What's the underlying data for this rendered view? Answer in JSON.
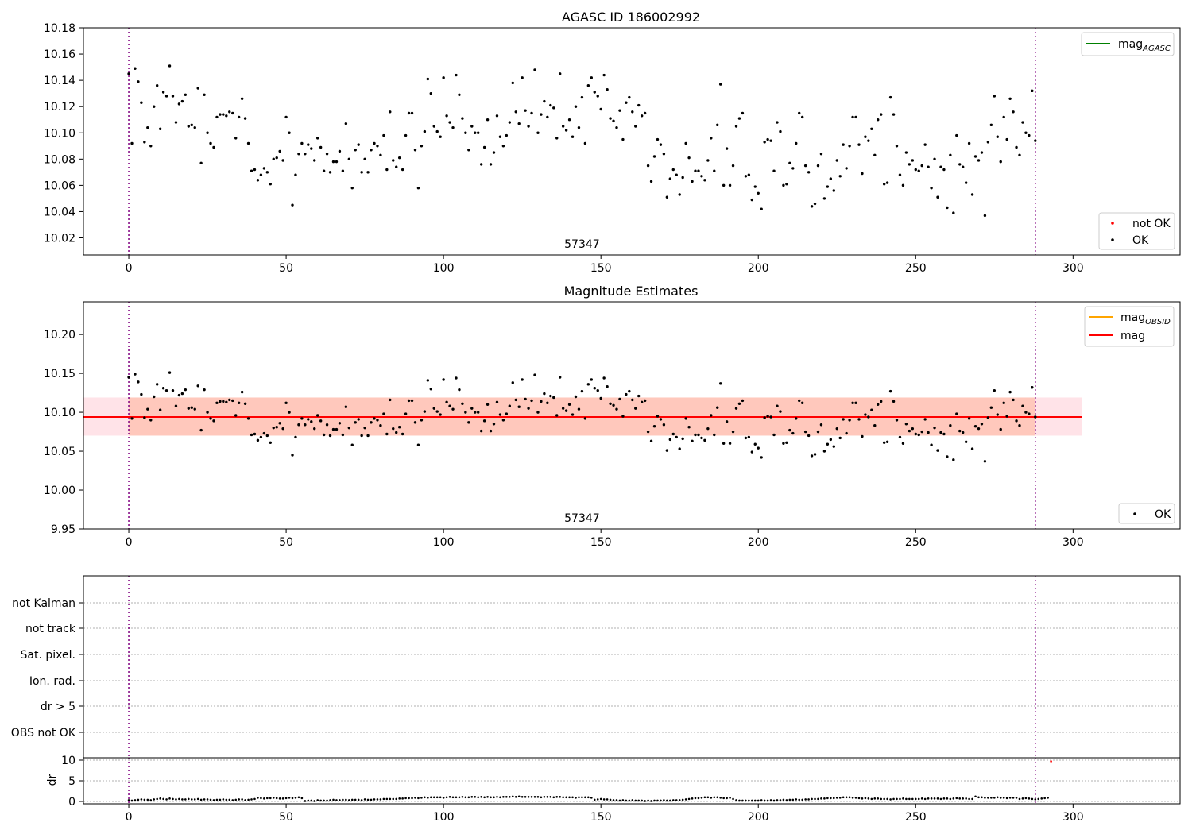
{
  "figure": {
    "background": "#ffffff"
  },
  "chart_data": [
    {
      "type": "scatter",
      "title": "AGASC ID 186002992",
      "xlim": [
        -14.4,
        334.0
      ],
      "ylim": [
        10.007,
        10.18
      ],
      "xticks": [
        0,
        50,
        100,
        150,
        200,
        250,
        300
      ],
      "xtick_labels": [
        "0",
        "50",
        "100",
        "150",
        "200",
        "250",
        "300"
      ],
      "yticks": [
        10.02,
        10.04,
        10.06,
        10.08,
        10.1,
        10.12,
        10.14,
        10.16,
        10.18
      ],
      "ytick_labels": [
        "10.02",
        "10.04",
        "10.06",
        "10.08",
        "10.10",
        "10.12",
        "10.14",
        "10.16",
        "10.18"
      ],
      "obs_boundaries": [
        0,
        288
      ],
      "obs_label": {
        "text": "57347",
        "x": 144
      },
      "legend_upper": [
        {
          "label": "mag",
          "subscript": "AGASC",
          "color": "#008000",
          "kind": "line"
        }
      ],
      "legend_lower": [
        {
          "label": "not OK",
          "color": "#ff0000",
          "kind": "dot"
        },
        {
          "label": "OK",
          "color": "#000000",
          "kind": "dot"
        }
      ],
      "series": [
        {
          "name": "OK",
          "color": "#000000",
          "points_ref": "ok_points"
        }
      ]
    },
    {
      "type": "scatter",
      "title": "Magnitude Estimates",
      "xlim": [
        -14.4,
        334.0
      ],
      "ylim": [
        9.95,
        10.242
      ],
      "xticks": [
        0,
        50,
        100,
        150,
        200,
        250,
        300
      ],
      "xtick_labels": [
        "0",
        "50",
        "100",
        "150",
        "200",
        "250",
        "300"
      ],
      "yticks": [
        9.95,
        10.0,
        10.05,
        10.1,
        10.15,
        10.2
      ],
      "ytick_labels": [
        "9.95",
        "10.00",
        "10.05",
        "10.10",
        "10.15",
        "10.20"
      ],
      "obs_boundaries": [
        0,
        288
      ],
      "obs_label": {
        "text": "57347",
        "x": 144
      },
      "mag_line": {
        "y": 10.094,
        "x": [
          -14.4,
          302.8
        ],
        "color": "#ff0000"
      },
      "mag_band": {
        "y": [
          10.07,
          10.119
        ],
        "x": [
          -14.4,
          302.8
        ],
        "color": "#ffc0cb"
      },
      "obsid_band": {
        "y": [
          10.07,
          10.119
        ],
        "x": [
          0,
          288
        ],
        "color": "#ffa07a"
      },
      "legend_upper": [
        {
          "label": "mag",
          "subscript": "OBSID",
          "color": "#ffa500",
          "kind": "line"
        },
        {
          "label": "mag",
          "subscript": "",
          "color": "#ff0000",
          "kind": "line"
        }
      ],
      "legend_lower": [
        {
          "label": "OK",
          "color": "#000000",
          "kind": "dot"
        }
      ],
      "series": [
        {
          "name": "OK",
          "color": "#000000",
          "points_ref": "ok_points"
        }
      ]
    },
    {
      "type": "scatter",
      "title": "",
      "xlim": [
        -14.4,
        334.0
      ],
      "categories": [
        "not Kalman",
        "not track",
        "Sat. pixel.",
        "Ion. rad.",
        "dr > 5",
        "OBS not OK"
      ],
      "obs_boundaries": [
        0,
        288
      ],
      "dr_panel": {
        "ylabel": "dr",
        "ylim": [
          0,
          11
        ],
        "yticks": [
          0,
          5,
          10
        ],
        "ytick_labels": [
          "0",
          "5",
          "10"
        ],
        "xticks": [
          0,
          50,
          100,
          150,
          200,
          250,
          300
        ],
        "xtick_labels": [
          "0",
          "50",
          "100",
          "150",
          "200",
          "250",
          "300"
        ],
        "series": [
          {
            "name": "dr",
            "color": "#000000",
            "y_ref": "dr_values"
          }
        ]
      }
    }
  ],
  "ok_points": [
    [
      0,
      10.145
    ],
    [
      1,
      10.092
    ],
    [
      2,
      10.149
    ],
    [
      3,
      10.139
    ],
    [
      4,
      10.123
    ],
    [
      5,
      10.093
    ],
    [
      6,
      10.104
    ],
    [
      7,
      10.09
    ],
    [
      8,
      10.12
    ],
    [
      9,
      10.136
    ],
    [
      10,
      10.103
    ],
    [
      11,
      10.131
    ],
    [
      12,
      10.128
    ],
    [
      13,
      10.151
    ],
    [
      14,
      10.128
    ],
    [
      15,
      10.108
    ],
    [
      16,
      10.122
    ],
    [
      17,
      10.124
    ],
    [
      18,
      10.129
    ],
    [
      19,
      10.105
    ],
    [
      20,
      10.106
    ],
    [
      21,
      10.104
    ],
    [
      22,
      10.134
    ],
    [
      23,
      10.077
    ],
    [
      24,
      10.129
    ],
    [
      25,
      10.1
    ],
    [
      26,
      10.092
    ],
    [
      27,
      10.089
    ],
    [
      28,
      10.112
    ],
    [
      29,
      10.114
    ],
    [
      30,
      10.114
    ],
    [
      31,
      10.113
    ],
    [
      32,
      10.116
    ],
    [
      33,
      10.115
    ],
    [
      34,
      10.096
    ],
    [
      35,
      10.112
    ],
    [
      36,
      10.126
    ],
    [
      37,
      10.111
    ],
    [
      38,
      10.092
    ],
    [
      39,
      10.071
    ],
    [
      40,
      10.072
    ],
    [
      41,
      10.064
    ],
    [
      42,
      10.068
    ],
    [
      43,
      10.073
    ],
    [
      44,
      10.07
    ],
    [
      45,
      10.061
    ],
    [
      46,
      10.08
    ],
    [
      47,
      10.081
    ],
    [
      48,
      10.086
    ],
    [
      49,
      10.079
    ],
    [
      50,
      10.112
    ],
    [
      51,
      10.1
    ],
    [
      52,
      10.045
    ],
    [
      53,
      10.068
    ],
    [
      54,
      10.084
    ],
    [
      55,
      10.092
    ],
    [
      56,
      10.084
    ],
    [
      57,
      10.091
    ],
    [
      58,
      10.088
    ],
    [
      59,
      10.079
    ],
    [
      60,
      10.096
    ],
    [
      61,
      10.089
    ],
    [
      62,
      10.071
    ],
    [
      63,
      10.084
    ],
    [
      64,
      10.07
    ],
    [
      65,
      10.078
    ],
    [
      66,
      10.078
    ],
    [
      67,
      10.086
    ],
    [
      68,
      10.071
    ],
    [
      69,
      10.107
    ],
    [
      70,
      10.08
    ],
    [
      71,
      10.058
    ],
    [
      72,
      10.087
    ],
    [
      73,
      10.091
    ],
    [
      74,
      10.07
    ],
    [
      75,
      10.08
    ],
    [
      76,
      10.07
    ],
    [
      77,
      10.087
    ],
    [
      78,
      10.092
    ],
    [
      79,
      10.09
    ],
    [
      80,
      10.083
    ],
    [
      81,
      10.098
    ],
    [
      82,
      10.072
    ],
    [
      83,
      10.116
    ],
    [
      84,
      10.079
    ],
    [
      85,
      10.074
    ],
    [
      86,
      10.081
    ],
    [
      87,
      10.072
    ],
    [
      88,
      10.098
    ],
    [
      89,
      10.115
    ],
    [
      90,
      10.115
    ],
    [
      91,
      10.087
    ],
    [
      92,
      10.058
    ],
    [
      93,
      10.09
    ],
    [
      94,
      10.101
    ],
    [
      95,
      10.141
    ],
    [
      96,
      10.13
    ],
    [
      97,
      10.105
    ],
    [
      98,
      10.101
    ],
    [
      99,
      10.097
    ],
    [
      100,
      10.142
    ],
    [
      101,
      10.113
    ],
    [
      102,
      10.108
    ],
    [
      103,
      10.104
    ],
    [
      104,
      10.144
    ],
    [
      105,
      10.129
    ],
    [
      106,
      10.111
    ],
    [
      107,
      10.1
    ],
    [
      108,
      10.087
    ],
    [
      109,
      10.105
    ],
    [
      110,
      10.1
    ],
    [
      111,
      10.1
    ],
    [
      112,
      10.076
    ],
    [
      113,
      10.089
    ],
    [
      114,
      10.11
    ],
    [
      115,
      10.076
    ],
    [
      116,
      10.085
    ],
    [
      117,
      10.113
    ],
    [
      118,
      10.097
    ],
    [
      119,
      10.09
    ],
    [
      120,
      10.098
    ],
    [
      121,
      10.108
    ],
    [
      122,
      10.138
    ],
    [
      123,
      10.116
    ],
    [
      124,
      10.107
    ],
    [
      125,
      10.142
    ],
    [
      126,
      10.117
    ],
    [
      127,
      10.105
    ],
    [
      128,
      10.115
    ],
    [
      129,
      10.148
    ],
    [
      130,
      10.1
    ],
    [
      131,
      10.114
    ],
    [
      132,
      10.124
    ],
    [
      133,
      10.112
    ],
    [
      134,
      10.121
    ],
    [
      135,
      10.119
    ],
    [
      136,
      10.096
    ],
    [
      137,
      10.145
    ],
    [
      138,
      10.105
    ],
    [
      139,
      10.102
    ],
    [
      140,
      10.11
    ],
    [
      141,
      10.097
    ],
    [
      142,
      10.12
    ],
    [
      143,
      10.104
    ],
    [
      144,
      10.127
    ],
    [
      145,
      10.092
    ],
    [
      146,
      10.136
    ],
    [
      147,
      10.142
    ],
    [
      148,
      10.131
    ],
    [
      149,
      10.128
    ],
    [
      150,
      10.118
    ],
    [
      151,
      10.144
    ],
    [
      152,
      10.133
    ],
    [
      153,
      10.111
    ],
    [
      154,
      10.109
    ],
    [
      155,
      10.104
    ],
    [
      156,
      10.117
    ],
    [
      157,
      10.095
    ],
    [
      158,
      10.123
    ],
    [
      159,
      10.127
    ],
    [
      160,
      10.116
    ],
    [
      161,
      10.105
    ],
    [
      162,
      10.121
    ],
    [
      163,
      10.113
    ],
    [
      164,
      10.115
    ],
    [
      165,
      10.075
    ],
    [
      166,
      10.063
    ],
    [
      167,
      10.082
    ],
    [
      168,
      10.095
    ],
    [
      169,
      10.091
    ],
    [
      170,
      10.084
    ],
    [
      171,
      10.051
    ],
    [
      172,
      10.065
    ],
    [
      173,
      10.072
    ],
    [
      174,
      10.068
    ],
    [
      175,
      10.053
    ],
    [
      176,
      10.066
    ],
    [
      177,
      10.092
    ],
    [
      178,
      10.081
    ],
    [
      179,
      10.063
    ],
    [
      180,
      10.071
    ],
    [
      181,
      10.071
    ],
    [
      182,
      10.067
    ],
    [
      183,
      10.064
    ],
    [
      184,
      10.079
    ],
    [
      185,
      10.096
    ],
    [
      186,
      10.071
    ],
    [
      187,
      10.106
    ],
    [
      188,
      10.137
    ],
    [
      189,
      10.06
    ],
    [
      190,
      10.088
    ],
    [
      191,
      10.06
    ],
    [
      192,
      10.075
    ],
    [
      193,
      10.105
    ],
    [
      194,
      10.111
    ],
    [
      195,
      10.115
    ],
    [
      196,
      10.067
    ],
    [
      197,
      10.068
    ],
    [
      198,
      10.049
    ],
    [
      199,
      10.059
    ],
    [
      200,
      10.054
    ],
    [
      201,
      10.042
    ],
    [
      202,
      10.093
    ],
    [
      203,
      10.095
    ],
    [
      204,
      10.094
    ],
    [
      205,
      10.071
    ],
    [
      206,
      10.108
    ],
    [
      207,
      10.101
    ],
    [
      208,
      10.06
    ],
    [
      209,
      10.061
    ],
    [
      210,
      10.077
    ],
    [
      211,
      10.073
    ],
    [
      212,
      10.092
    ],
    [
      213,
      10.115
    ],
    [
      214,
      10.112
    ],
    [
      215,
      10.075
    ],
    [
      216,
      10.07
    ],
    [
      217,
      10.044
    ],
    [
      218,
      10.046
    ],
    [
      219,
      10.075
    ],
    [
      220,
      10.084
    ],
    [
      221,
      10.05
    ],
    [
      222,
      10.059
    ],
    [
      223,
      10.065
    ],
    [
      224,
      10.056
    ],
    [
      225,
      10.079
    ],
    [
      226,
      10.067
    ],
    [
      227,
      10.091
    ],
    [
      228,
      10.073
    ],
    [
      229,
      10.09
    ],
    [
      230,
      10.112
    ],
    [
      231,
      10.112
    ],
    [
      232,
      10.091
    ],
    [
      233,
      10.069
    ],
    [
      234,
      10.097
    ],
    [
      235,
      10.094
    ],
    [
      236,
      10.103
    ],
    [
      237,
      10.083
    ],
    [
      238,
      10.11
    ],
    [
      239,
      10.114
    ],
    [
      240,
      10.061
    ],
    [
      241,
      10.062
    ],
    [
      242,
      10.127
    ],
    [
      243,
      10.114
    ],
    [
      244,
      10.09
    ],
    [
      245,
      10.068
    ],
    [
      246,
      10.06
    ],
    [
      247,
      10.085
    ],
    [
      248,
      10.076
    ],
    [
      249,
      10.079
    ],
    [
      250,
      10.072
    ],
    [
      251,
      10.071
    ],
    [
      252,
      10.075
    ],
    [
      253,
      10.091
    ],
    [
      254,
      10.074
    ],
    [
      255,
      10.058
    ],
    [
      256,
      10.08
    ],
    [
      257,
      10.051
    ],
    [
      258,
      10.074
    ],
    [
      259,
      10.072
    ],
    [
      260,
      10.043
    ],
    [
      261,
      10.083
    ],
    [
      262,
      10.039
    ],
    [
      263,
      10.098
    ],
    [
      264,
      10.076
    ],
    [
      265,
      10.074
    ],
    [
      266,
      10.062
    ],
    [
      267,
      10.092
    ],
    [
      268,
      10.053
    ],
    [
      269,
      10.082
    ],
    [
      270,
      10.079
    ],
    [
      271,
      10.085
    ],
    [
      272,
      10.037
    ],
    [
      273,
      10.093
    ],
    [
      274,
      10.106
    ],
    [
      275,
      10.128
    ],
    [
      276,
      10.097
    ],
    [
      277,
      10.078
    ],
    [
      278,
      10.112
    ],
    [
      279,
      10.095
    ],
    [
      280,
      10.126
    ],
    [
      281,
      10.116
    ],
    [
      282,
      10.089
    ],
    [
      283,
      10.083
    ],
    [
      284,
      10.108
    ],
    [
      285,
      10.1
    ],
    [
      286,
      10.098
    ],
    [
      287,
      10.132
    ],
    [
      288,
      10.094
    ]
  ],
  "dr_values": [
    0.3,
    0.2,
    0.3,
    0.4,
    0.5,
    0.4,
    0.4,
    0.3,
    0.5,
    0.6,
    0.7,
    0.6,
    0.5,
    0.7,
    0.6,
    0.5,
    0.6,
    0.5,
    0.5,
    0.6,
    0.5,
    0.5,
    0.6,
    0.4,
    0.5,
    0.5,
    0.4,
    0.3,
    0.4,
    0.4,
    0.5,
    0.4,
    0.4,
    0.3,
    0.4,
    0.5,
    0.5,
    0.3,
    0.4,
    0.5,
    0.6,
    0.9,
    0.8,
    0.7,
    0.8,
    0.8,
    0.9,
    0.8,
    0.7,
    0.7,
    0.8,
    0.9,
    0.8,
    0.9,
    1.0,
    0.8,
    0.1,
    0.2,
    0.2,
    0.1,
    0.3,
    0.2,
    0.2,
    0.2,
    0.3,
    0.4,
    0.3,
    0.3,
    0.4,
    0.4,
    0.3,
    0.4,
    0.4,
    0.4,
    0.3,
    0.5,
    0.4,
    0.4,
    0.5,
    0.5,
    0.5,
    0.6,
    0.6,
    0.6,
    0.6,
    0.6,
    0.7,
    0.7,
    0.8,
    0.8,
    0.8,
    0.9,
    0.8,
    0.9,
    1.0,
    0.9,
    1.0,
    1.0,
    1.0,
    1.0,
    0.9,
    1.0,
    1.1,
    1.0,
    1.0,
    1.0,
    1.1,
    1.0,
    1.0,
    1.1,
    1.1,
    1.0,
    1.1,
    1.0,
    1.1,
    1.0,
    1.0,
    1.1,
    1.0,
    1.1,
    1.1,
    1.1,
    1.2,
    1.1,
    1.2,
    1.1,
    1.1,
    1.1,
    1.1,
    1.1,
    1.1,
    1.0,
    1.1,
    1.1,
    1.1,
    1.0,
    1.1,
    1.1,
    1.0,
    1.0,
    1.0,
    1.0,
    0.9,
    1.0,
    1.0,
    1.0,
    1.0,
    0.9,
    0.4,
    0.5,
    0.6,
    0.5,
    0.5,
    0.4,
    0.3,
    0.3,
    0.2,
    0.3,
    0.2,
    0.2,
    0.3,
    0.2,
    0.2,
    0.2,
    0.1,
    0.2,
    0.1,
    0.2,
    0.2,
    0.2,
    0.3,
    0.2,
    0.2,
    0.3,
    0.3,
    0.3,
    0.4,
    0.5,
    0.6,
    0.7,
    0.8,
    0.8,
    0.9,
    1.0,
    1.0,
    0.9,
    1.0,
    1.0,
    0.9,
    0.8,
    0.8,
    0.9,
    0.6,
    0.3,
    0.2,
    0.2,
    0.2,
    0.2,
    0.2,
    0.2,
    0.2,
    0.3,
    0.2,
    0.2,
    0.3,
    0.2,
    0.3,
    0.3,
    0.4,
    0.3,
    0.4,
    0.4,
    0.5,
    0.4,
    0.4,
    0.5,
    0.5,
    0.6,
    0.6,
    0.6,
    0.7,
    0.7,
    0.8,
    0.8,
    0.8,
    0.9,
    0.9,
    1.0,
    1.0,
    1.0,
    0.9,
    0.9,
    0.8,
    0.7,
    0.8,
    0.7,
    0.6,
    0.7,
    0.7,
    0.6,
    0.6,
    0.6,
    0.5,
    0.6,
    0.6,
    0.6,
    0.7,
    0.6,
    0.6,
    0.6,
    0.6,
    0.6,
    0.7,
    0.6,
    0.7,
    0.7,
    0.7,
    0.7,
    0.6,
    0.7,
    0.7,
    0.6,
    0.7,
    0.8,
    0.7,
    0.7,
    0.7,
    0.6,
    0.6,
    1.2,
    1.0,
    1.0,
    0.9,
    0.9,
    0.9,
    0.9,
    1.0,
    0.9,
    0.9,
    0.8,
    0.9,
    0.9,
    0.9,
    0.6,
    0.7,
    0.8,
    0.7,
    0.6,
    0.5,
    0.6,
    0.7,
    0.8,
    0.9,
    9.7
  ]
}
